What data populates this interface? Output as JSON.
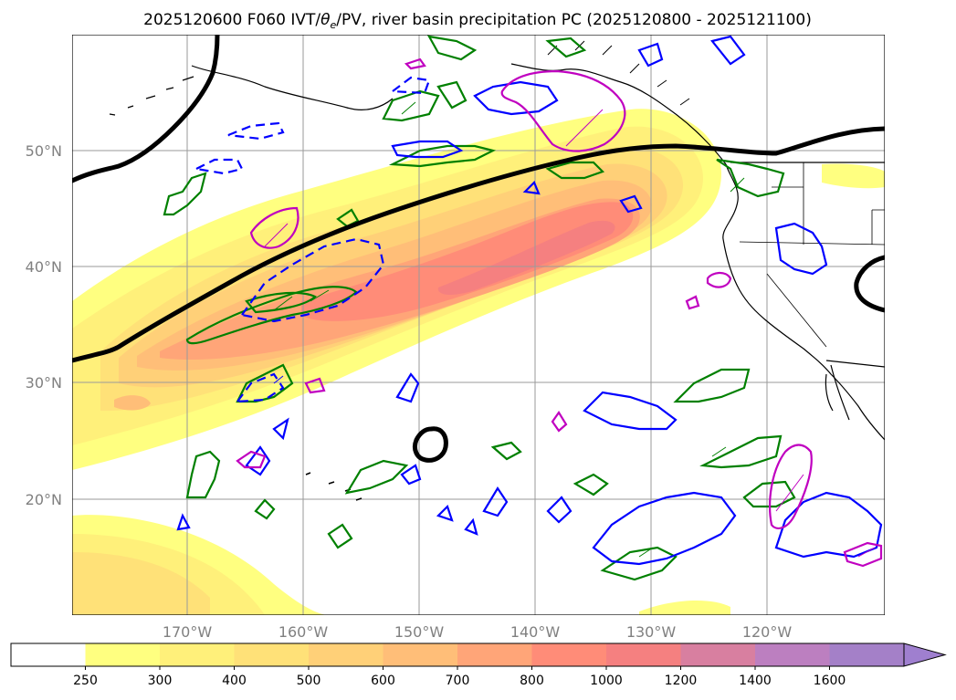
{
  "title": {
    "prefix": "2025120600 F060 IVT/",
    "theta": "θ",
    "theta_sub": "e",
    "suffix": "/PV, river basin precipitation PC (2025120800 - 2025121100)"
  },
  "map": {
    "lat_labels": [
      "50°N",
      "40°N",
      "30°N",
      "20°N"
    ],
    "lon_labels": [
      "170°W",
      "160°W",
      "150°W",
      "140°W",
      "130°W",
      "120°W"
    ]
  },
  "colorbar": {
    "ticks": [
      "250",
      "300",
      "400",
      "500",
      "600",
      "700",
      "800",
      "1000",
      "1200",
      "1400",
      "1600"
    ],
    "colors": [
      "#ffffff",
      "#ffff80",
      "#fff07a",
      "#ffe178",
      "#ffd078",
      "#ffbe78",
      "#ffa578",
      "#ff8c78",
      "#f58080",
      "#d87fa0",
      "#bc7fc0",
      "#a480c8"
    ],
    "extend_color": "#9f7fcf"
  },
  "contour_colors": {
    "black": "#000000",
    "blue": "#0000ff",
    "green": "#008000",
    "magenta": "#c000c0"
  }
}
